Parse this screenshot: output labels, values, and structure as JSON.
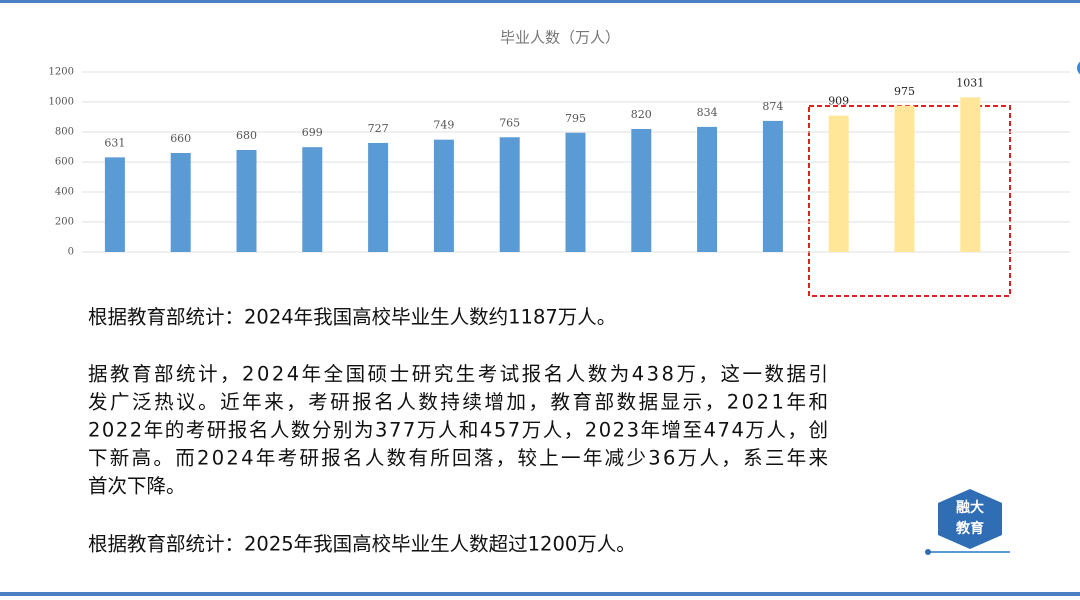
{
  "chart_data": {
    "type": "bar",
    "title": "毕业人数（万人）",
    "categories": [
      null,
      null,
      null,
      null,
      null,
      null,
      null,
      null,
      null,
      null,
      null,
      null,
      null,
      null
    ],
    "values": [
      631,
      660,
      680,
      699,
      727,
      749,
      765,
      795,
      820,
      834,
      874,
      909,
      975,
      1031
    ],
    "colors": [
      "#5b9bd5",
      "#5b9bd5",
      "#5b9bd5",
      "#5b9bd5",
      "#5b9bd5",
      "#5b9bd5",
      "#5b9bd5",
      "#5b9bd5",
      "#5b9bd5",
      "#5b9bd5",
      "#5b9bd5",
      "#ffe699",
      "#ffe699",
      "#ffe699"
    ],
    "ylim": [
      0,
      1200
    ],
    "yticks": [
      0,
      200,
      400,
      600,
      800,
      1000,
      1200
    ],
    "grid": true
  },
  "text": {
    "paragraphs": [
      {
        "lines": [
          "根据教育部统计：2024年我国高校毕业生人数约1187万人。"
        ]
      },
      {
        "lines": [
          "据教育部统计，2024年全国硕士研究生考试报名人数为438万，这一数据引",
          "发广泛热议。近年来，考研报名人数持续增加，教育部数据显示，2021年和",
          "2022年的考研报名人数分别为377万人和457万人，2023年增至474万人，创",
          "下新高。而2024年考研报名人数有所回落，较上一年减少36万人，系三年来",
          "首次下降。"
        ]
      },
      {
        "lines": [
          "根据教育部统计：2025年我国高校毕业生人数超过1200万人。"
        ]
      }
    ]
  },
  "logo": {
    "lines": [
      "融大",
      "教育"
    ]
  }
}
